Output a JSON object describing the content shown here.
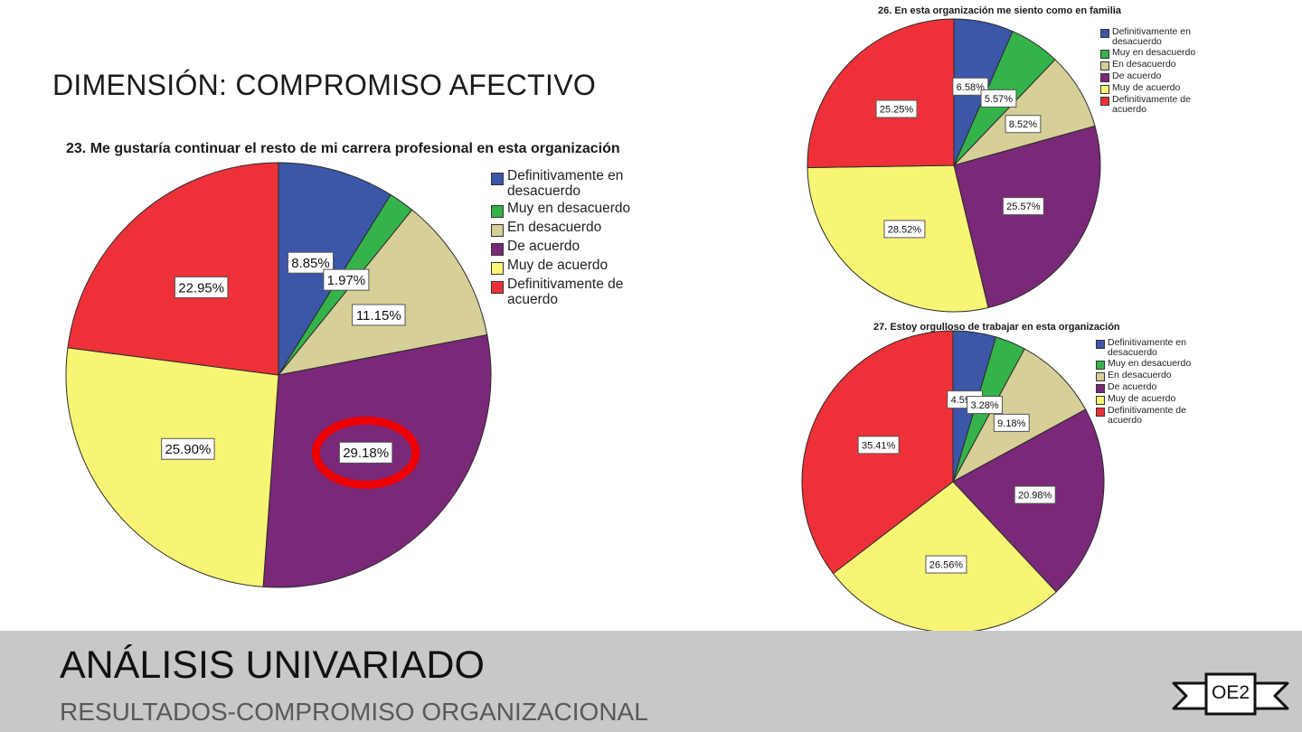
{
  "slide": {
    "title": "DIMENSIÓN: COMPROMISO AFECTIVO"
  },
  "footer": {
    "title": "ANÁLISIS UNIVARIADO",
    "subtitle": "RESULTADOS-COMPROMISO ORGANIZACIONAL",
    "badge": "OE2",
    "background": "#c8c8c8"
  },
  "chart_data": [
    {
      "type": "pie",
      "title": "23. Me gustaría continuar el resto de mi carrera profesional en esta organización",
      "categories": [
        "Definitivamente en desacuerdo",
        "Muy en desacuerdo",
        "En desacuerdo",
        "De acuerdo",
        "Muy de acuerdo",
        "Definitivamente de acuerdo"
      ],
      "values": [
        8.85,
        1.97,
        11.15,
        29.18,
        25.9,
        22.95
      ],
      "data_labels": [
        "8.85%",
        "1.97%",
        "11.15%",
        "29.18%",
        "25.90%",
        "22.95%"
      ],
      "colors": [
        "#3c57a8",
        "#34b34a",
        "#d6cf98",
        "#7a2878",
        "#f8f575",
        "#ee3138"
      ],
      "legend": "right",
      "highlight": {
        "category": "De acuerdo",
        "shape": "ellipse",
        "color": "#ee0000"
      }
    },
    {
      "type": "pie",
      "title": "26. En esta organización me siento como en familia",
      "categories": [
        "Definitivamente en desacuerdo",
        "Muy en desacuerdo",
        "En desacuerdo",
        "De acuerdo",
        "Muy de acuerdo",
        "Definitivamente de acuerdo"
      ],
      "values": [
        6.58,
        5.57,
        8.52,
        25.57,
        28.52,
        25.25
      ],
      "data_labels": [
        "6.58%",
        "5.57%",
        "8.52%",
        "25.57%",
        "28.52%",
        "25.25%"
      ],
      "colors": [
        "#3c57a8",
        "#34b34a",
        "#d6cf98",
        "#7a2878",
        "#f8f575",
        "#ee3138"
      ],
      "legend": "right"
    },
    {
      "type": "pie",
      "title": "27. Estoy orgulloso de trabajar en esta organización",
      "categories": [
        "Definitivamente en desacuerdo",
        "Muy en desacuerdo",
        "En desacuerdo",
        "De acuerdo",
        "Muy de acuerdo",
        "Definitivamente de acuerdo"
      ],
      "values": [
        4.59,
        3.28,
        9.18,
        20.98,
        26.56,
        35.41
      ],
      "data_labels": [
        "4.59%",
        "3.28%",
        "9.18%",
        "20.98%",
        "26.56%",
        "35.41%"
      ],
      "colors": [
        "#3c57a8",
        "#34b34a",
        "#d6cf98",
        "#7a2878",
        "#f8f575",
        "#ee3138"
      ],
      "legend": "right"
    }
  ]
}
